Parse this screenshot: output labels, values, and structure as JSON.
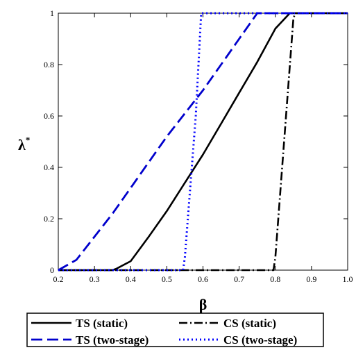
{
  "chart_data": {
    "type": "line",
    "xlabel": "β",
    "ylabel": "λ",
    "ylabel_superscript": "*",
    "xlim": [
      0.2,
      1.0
    ],
    "ylim": [
      0,
      1
    ],
    "xticks": [
      "0.2",
      "0.3",
      "0.4",
      "0.5",
      "0.6",
      "0.7",
      "0.8",
      "0.9",
      "1.0"
    ],
    "yticks": [
      "0",
      "0.2",
      "0.4",
      "0.6",
      "0.8",
      "1"
    ],
    "legend_position": "bottom",
    "series": [
      {
        "name": "TS (static)",
        "color": "#000000",
        "dash": "solid",
        "x": [
          0.2,
          0.35,
          0.36,
          0.4,
          0.45,
          0.5,
          0.55,
          0.6,
          0.65,
          0.7,
          0.75,
          0.8,
          0.84,
          0.85,
          1.0
        ],
        "y": [
          0,
          0,
          0.005,
          0.035,
          0.13,
          0.23,
          0.34,
          0.45,
          0.57,
          0.69,
          0.81,
          0.94,
          1.0,
          1.0,
          1.0
        ]
      },
      {
        "name": "CS (static)",
        "color": "#000000",
        "dash": "dashdot",
        "x": [
          0.2,
          0.795,
          0.8,
          0.85,
          0.855,
          1.0
        ],
        "y": [
          0,
          0,
          0.05,
          0.98,
          1.0,
          1.0
        ]
      },
      {
        "name": "TS (two-stage)",
        "color": "#0000cc",
        "dash": "dash",
        "x": [
          0.2,
          0.25,
          0.3,
          0.35,
          0.4,
          0.45,
          0.5,
          0.55,
          0.6,
          0.65,
          0.7,
          0.75,
          0.8,
          0.85,
          1.0
        ],
        "y": [
          0,
          0.04,
          0.13,
          0.22,
          0.32,
          0.42,
          0.52,
          0.61,
          0.7,
          0.8,
          0.9,
          1.0,
          1.0,
          1.0,
          1.0
        ]
      },
      {
        "name": "CS (two-stage)",
        "color": "#0000ff",
        "dash": "dot",
        "x": [
          0.2,
          0.545,
          0.55,
          0.58,
          0.595,
          1.0
        ],
        "y": [
          0,
          0,
          0.05,
          0.6,
          1.0,
          1.0
        ]
      }
    ]
  }
}
